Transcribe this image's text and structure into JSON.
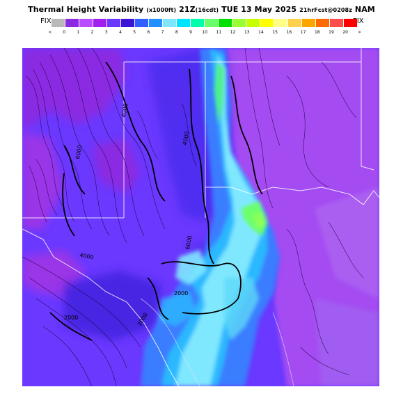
{
  "header": {
    "title_main": "Thermal Height Variability",
    "title_units": "(x1000ft)",
    "title_time": "21Z",
    "title_local": "(16cdt)",
    "title_date": "TUE 13 May 2025",
    "title_fcst": "21hrFcst@0208z",
    "title_model": "NAM",
    "fix_left": "FIX",
    "fix_right": "FIX"
  },
  "legend": {
    "colors": [
      "#b9b9b9",
      "#8a2be2",
      "#b84dff",
      "#a020f0",
      "#6a38ff",
      "#3c14d8",
      "#3060ff",
      "#1e90ff",
      "#7fe6ff",
      "#00e5ff",
      "#00ffaa",
      "#6aff6a",
      "#00e000",
      "#99ff33",
      "#c8ff00",
      "#ffff00",
      "#ffff88",
      "#ffd24d",
      "#ffa500",
      "#ff6a00",
      "#ff4d4d",
      "#ff0000",
      "#ff77aa",
      "#ff33cc",
      "#ff00dd"
    ],
    "tick_labels": [
      "<",
      "0",
      "1",
      "2",
      "3",
      "4",
      "5",
      "6",
      "7",
      "8",
      "9",
      "10",
      "11",
      "12",
      "13",
      "14",
      "15",
      "16",
      "17",
      "18",
      "19",
      "20",
      ">"
    ]
  },
  "map": {
    "background_color": "#6a38ff",
    "contour_labels": [
      "4000",
      "6000",
      "4000",
      "6000",
      "4000",
      "2000",
      "2000",
      "2000"
    ]
  }
}
